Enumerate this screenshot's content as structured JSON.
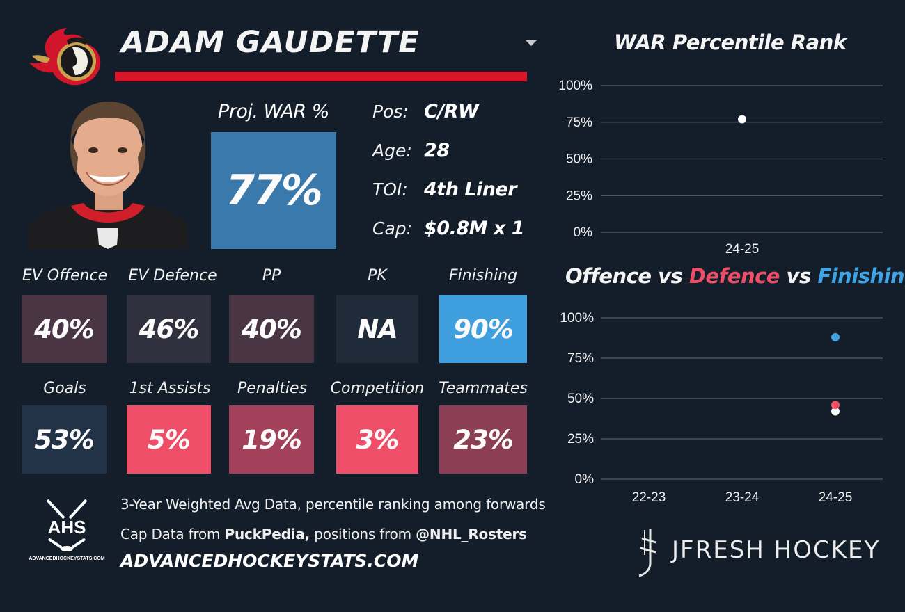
{
  "player": {
    "name": "ADAM GAUDETTE"
  },
  "team_logo_icon": "ottawa-senators-logo-icon",
  "proj_war": {
    "label": "Proj. WAR %",
    "value": "77%",
    "color": "#3a79ac"
  },
  "info": [
    {
      "label": "Pos:",
      "value": "C/RW"
    },
    {
      "label": "Age:",
      "value": "28"
    },
    {
      "label": "TOI:",
      "value": "4th Liner"
    },
    {
      "label": "Cap:",
      "value": "$0.8M x 1"
    }
  ],
  "stats_row1": [
    {
      "label": "EV Offence",
      "value": "40%",
      "color": "#4a3544"
    },
    {
      "label": "EV Defence",
      "value": "46%",
      "color": "#30303f"
    },
    {
      "label": "PP",
      "value": "40%",
      "color": "#4a3544"
    },
    {
      "label": "PK",
      "value": "NA",
      "color": "#1f2b39"
    },
    {
      "label": "Finishing",
      "value": "90%",
      "color": "#3f9ede"
    }
  ],
  "stats_row2": [
    {
      "label": "Goals",
      "value": "53%",
      "color": "#233347"
    },
    {
      "label": "1st Assists",
      "value": "5%",
      "color": "#ee4e67"
    },
    {
      "label": "Penalties",
      "value": "19%",
      "color": "#a3405a"
    },
    {
      "label": "Competition",
      "value": "3%",
      "color": "#ee4e67"
    },
    {
      "label": "Teammates",
      "value": "23%",
      "color": "#8c3e55"
    }
  ],
  "footer": {
    "line1": "3-Year Weighted Avg Data, percentile ranking among forwards",
    "line2_prefix": "Cap Data from ",
    "line2_bold1": "PuckPedia,",
    "line2_middle": " positions from ",
    "line2_bold2": "@NHL_Rosters",
    "site": "ADVANCEDHOCKEYSTATS.COM",
    "ahs_logo_text": "AHS",
    "ahs_logo_subtext": "ADVANCEDHOCKEYSTATS.COM",
    "brand": "JFRESH HOCKEY"
  },
  "chart_data": [
    {
      "type": "scatter",
      "title": "WAR Percentile Rank",
      "categories": [
        "24-25"
      ],
      "series": [
        {
          "values": [
            77
          ],
          "color": "#ffffff"
        }
      ],
      "yticks": [
        "0%",
        "25%",
        "50%",
        "75%",
        "100%"
      ],
      "ylim": [
        0,
        100
      ],
      "grid": true
    },
    {
      "type": "scatter",
      "title_parts": [
        {
          "text": "Offence",
          "color": "#f4f4f4"
        },
        {
          "text": " vs ",
          "color": "#f4f4f4"
        },
        {
          "text": "Defence",
          "color": "#ee4e67"
        },
        {
          "text": " vs ",
          "color": "#f4f4f4"
        },
        {
          "text": "Finishing",
          "color": "#3fa4e6"
        }
      ],
      "categories": [
        "22-23",
        "23-24",
        "24-25"
      ],
      "series": [
        {
          "name": "Offence",
          "values": [
            null,
            null,
            42
          ],
          "color": "#ffffff"
        },
        {
          "name": "Defence",
          "values": [
            null,
            null,
            46
          ],
          "color": "#ee4e67"
        },
        {
          "name": "Finishing",
          "values": [
            null,
            null,
            88
          ],
          "color": "#3fa4e6"
        }
      ],
      "yticks": [
        "0%",
        "25%",
        "50%",
        "75%",
        "100%"
      ],
      "ylim": [
        0,
        100
      ],
      "grid": true
    }
  ]
}
